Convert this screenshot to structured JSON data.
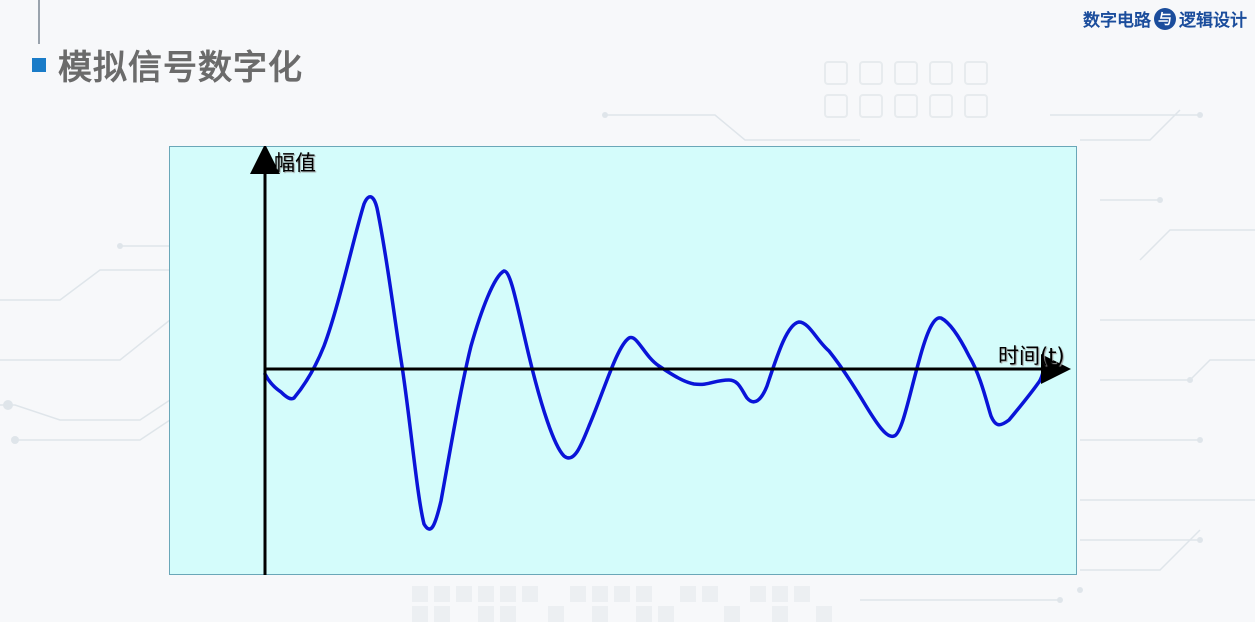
{
  "header": {
    "title": "模拟信号数字化",
    "brand_left": "数字电路",
    "brand_mid": "与",
    "brand_right": "逻辑设计"
  },
  "diagram": {
    "y_axis_label": "幅值",
    "x_axis_label": "时间(t)"
  },
  "colors": {
    "plot_background": "#d4fcfb",
    "signal": "#0a14d8",
    "axis": "#000000",
    "accent": "#1a7cc8"
  }
}
